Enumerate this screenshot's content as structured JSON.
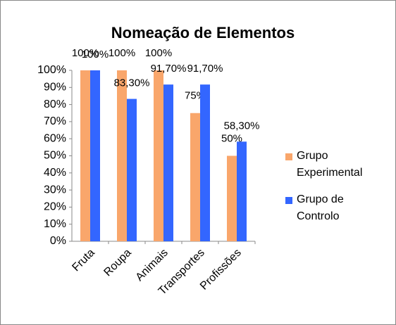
{
  "chart_data": {
    "type": "bar",
    "title": "Nomeação de Elementos",
    "categories": [
      "Fruta",
      "Roupa",
      "Animais",
      "Transportes",
      "Profissões"
    ],
    "series": [
      {
        "name": "Grupo Experimental",
        "color": "#f9a66b",
        "values": [
          100,
          100,
          100,
          75,
          50
        ],
        "value_labels": [
          "100%",
          "100%",
          "100%",
          "75%",
          "50%"
        ]
      },
      {
        "name": "Grupo de Controlo",
        "color": "#3366ff",
        "values": [
          100,
          83.3,
          91.7,
          91.7,
          58.3
        ],
        "value_labels": [
          "100%",
          "83,30%",
          "91,70%",
          "91,70%",
          "58,30%"
        ]
      }
    ],
    "ylim": [
      0,
      100
    ],
    "yticks": [
      {
        "value": 0,
        "label": "0%"
      },
      {
        "value": 10,
        "label": "10%"
      },
      {
        "value": 20,
        "label": "20%"
      },
      {
        "value": 30,
        "label": "30%"
      },
      {
        "value": 40,
        "label": "40%"
      },
      {
        "value": 50,
        "label": "50%"
      },
      {
        "value": 60,
        "label": "60%"
      },
      {
        "value": 70,
        "label": "70%"
      },
      {
        "value": 80,
        "label": "80%"
      },
      {
        "value": 90,
        "label": "90%"
      },
      {
        "value": 100,
        "label": "100%"
      }
    ],
    "legend": "right"
  }
}
